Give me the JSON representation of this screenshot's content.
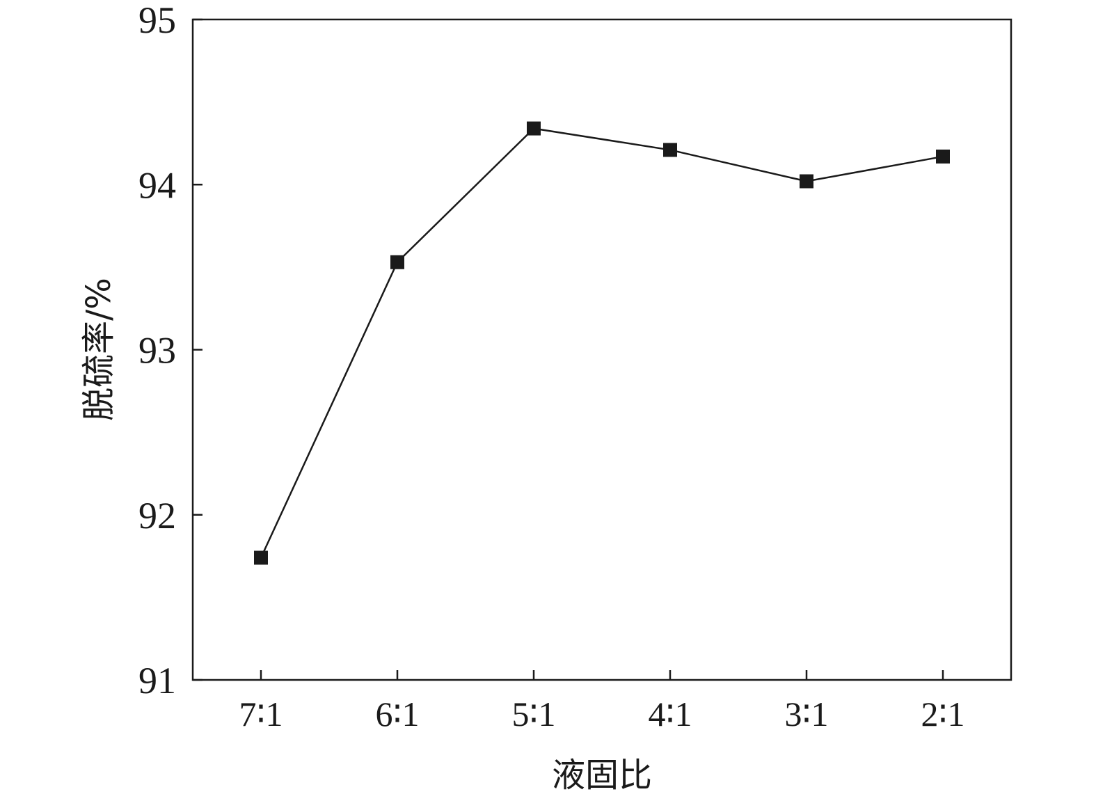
{
  "chart_data": {
    "type": "line",
    "title": "",
    "xlabel": "液固比",
    "ylabel": "脱硫率/%",
    "categories": [
      "7∶1",
      "6∶1",
      "5∶1",
      "4∶1",
      "3∶1",
      "2∶1"
    ],
    "series": [
      {
        "values": [
          91.74,
          93.53,
          94.34,
          94.21,
          94.02,
          94.17
        ]
      }
    ],
    "ylim": [
      91,
      95
    ],
    "yticks": [
      91,
      92,
      93,
      94,
      95
    ],
    "grid": false,
    "legend": "none",
    "marker": "filled-square",
    "colors": {
      "line": "#1a1a1a",
      "marker": "#1a1a1a",
      "frame": "#1a1a1a"
    }
  }
}
